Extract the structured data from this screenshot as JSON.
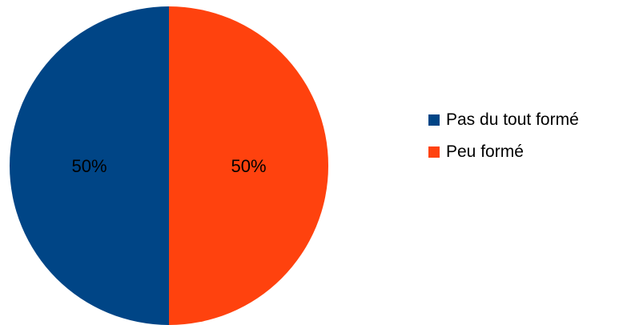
{
  "chart_data": {
    "type": "pie",
    "title": "",
    "categories": [
      "Pas du tout formé",
      "Peu formé"
    ],
    "values": [
      50,
      50
    ],
    "labels": [
      "50%",
      "50%"
    ],
    "colors": [
      "#004586",
      "#ff420e"
    ],
    "legend_position": "right"
  }
}
